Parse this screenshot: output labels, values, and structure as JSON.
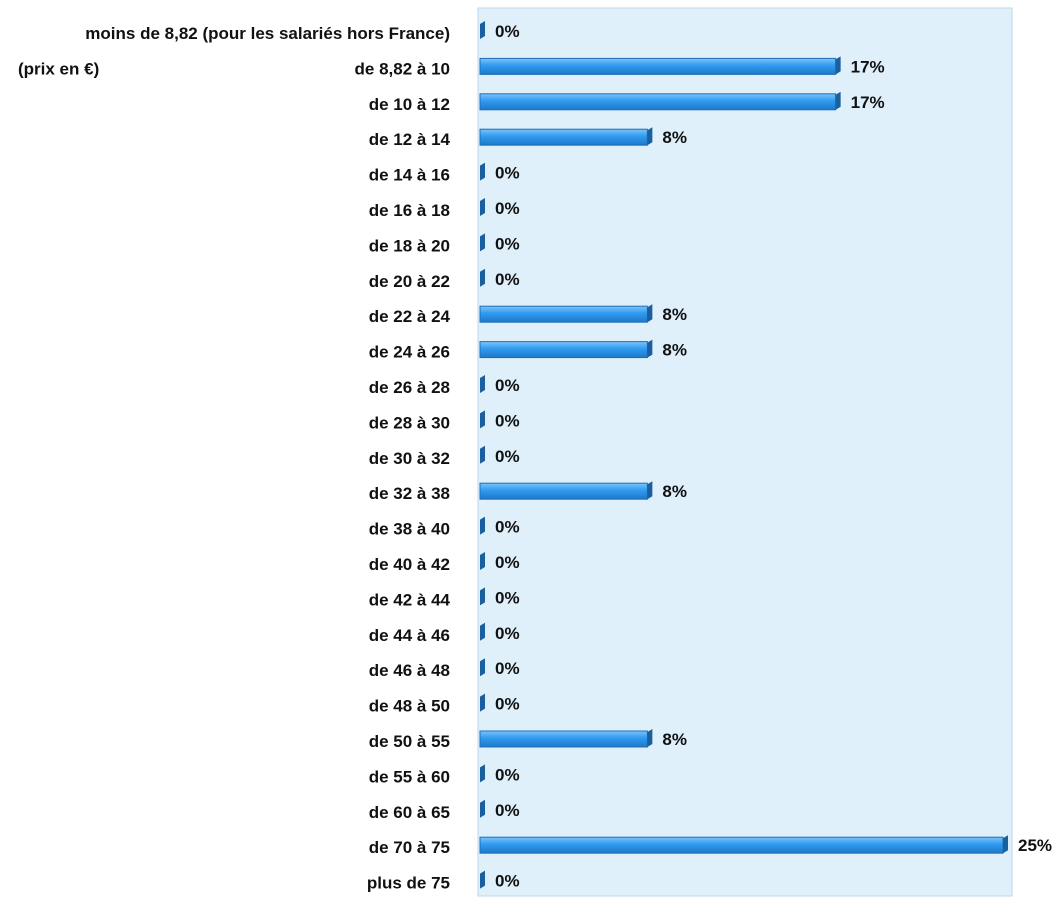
{
  "chart_data": {
    "type": "bar",
    "orientation": "horizontal",
    "unit_note": "(prix en €)",
    "categories": [
      "moins de 8,82  (pour les salariés hors France)",
      "de 8,82  à 10",
      "de 10  à 12",
      "de 12  à 14",
      "de 14  à 16",
      "de 16  à 18",
      "de 18  à 20",
      "de 20  à 22",
      "de 22  à 24",
      "de 24  à 26",
      "de 26  à 28",
      "de 28  à 30",
      "de 30  à 32",
      "de 32  à 38",
      "de 38  à 40",
      "de 40  à 42",
      "de 42  à 44",
      "de 44  à 46",
      "de 46  à 48",
      "de 48  à 50",
      "de 50  à 55",
      "de 55  à 60",
      "de 60  à 65",
      "de 70  à 75",
      "plus de 75"
    ],
    "values": [
      0,
      17,
      17,
      8,
      0,
      0,
      0,
      0,
      8,
      8,
      0,
      0,
      0,
      8,
      0,
      0,
      0,
      0,
      0,
      0,
      8,
      0,
      0,
      25,
      0
    ],
    "value_labels": [
      "0%",
      "17%",
      "17%",
      "8%",
      "0%",
      "0%",
      "0%",
      "0%",
      "8%",
      "8%",
      "0%",
      "0%",
      "0%",
      "8%",
      "0%",
      "0%",
      "0%",
      "0%",
      "0%",
      "0%",
      "8%",
      "0%",
      "0%",
      "25%",
      "0%"
    ],
    "xlim": [
      0,
      25
    ],
    "grid": false,
    "legend": "none",
    "colors": {
      "plot_background": "#dff0fb",
      "plot_border": "#b9d7ee",
      "bar_fill": "#2f9af0",
      "bar_fill_light": "#5db5f7",
      "bar_edge": "#1f6fb4",
      "bar_end_cap": "#1a5f9e"
    }
  }
}
